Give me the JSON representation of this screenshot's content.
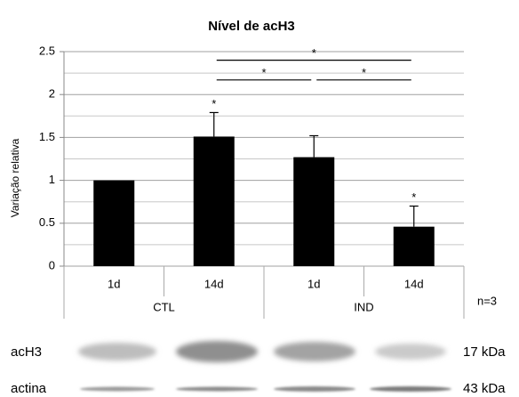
{
  "chart_data": {
    "type": "bar",
    "title": "Nível de acH3",
    "y_label": "Variação relativa",
    "categories": [
      "1d",
      "14d",
      "1d",
      "14d"
    ],
    "groups": [
      {
        "label": "CTL",
        "categories": [
          0,
          1
        ]
      },
      {
        "label": "IND",
        "categories": [
          2,
          3
        ]
      }
    ],
    "values": [
      1,
      1.51,
      1.27,
      0.46
    ],
    "errors": [
      null,
      0.28,
      0.25,
      0.24
    ],
    "significance": [
      null,
      "*",
      null,
      "*"
    ],
    "color": "#000000",
    "ylim": [
      0,
      2.5
    ],
    "yticks": [
      0,
      0.5,
      1,
      1.5,
      2,
      2.5
    ],
    "minor_yticks": [
      0.25,
      0.75,
      1.25,
      1.75,
      2.25
    ],
    "grid": true,
    "annotations": [
      {
        "text": "*",
        "from": 1,
        "to": 3,
        "y": 2.4
      },
      {
        "text": "*",
        "from": 1,
        "to": 2,
        "y": 2.17
      },
      {
        "text": "*",
        "from": 2,
        "to": 3,
        "y": 2.17
      }
    ],
    "note": "n=3"
  },
  "blot": {
    "rows": [
      {
        "label": "acH3",
        "size": "17 kDa"
      },
      {
        "label": "actina",
        "size": "43 kDa"
      }
    ]
  }
}
